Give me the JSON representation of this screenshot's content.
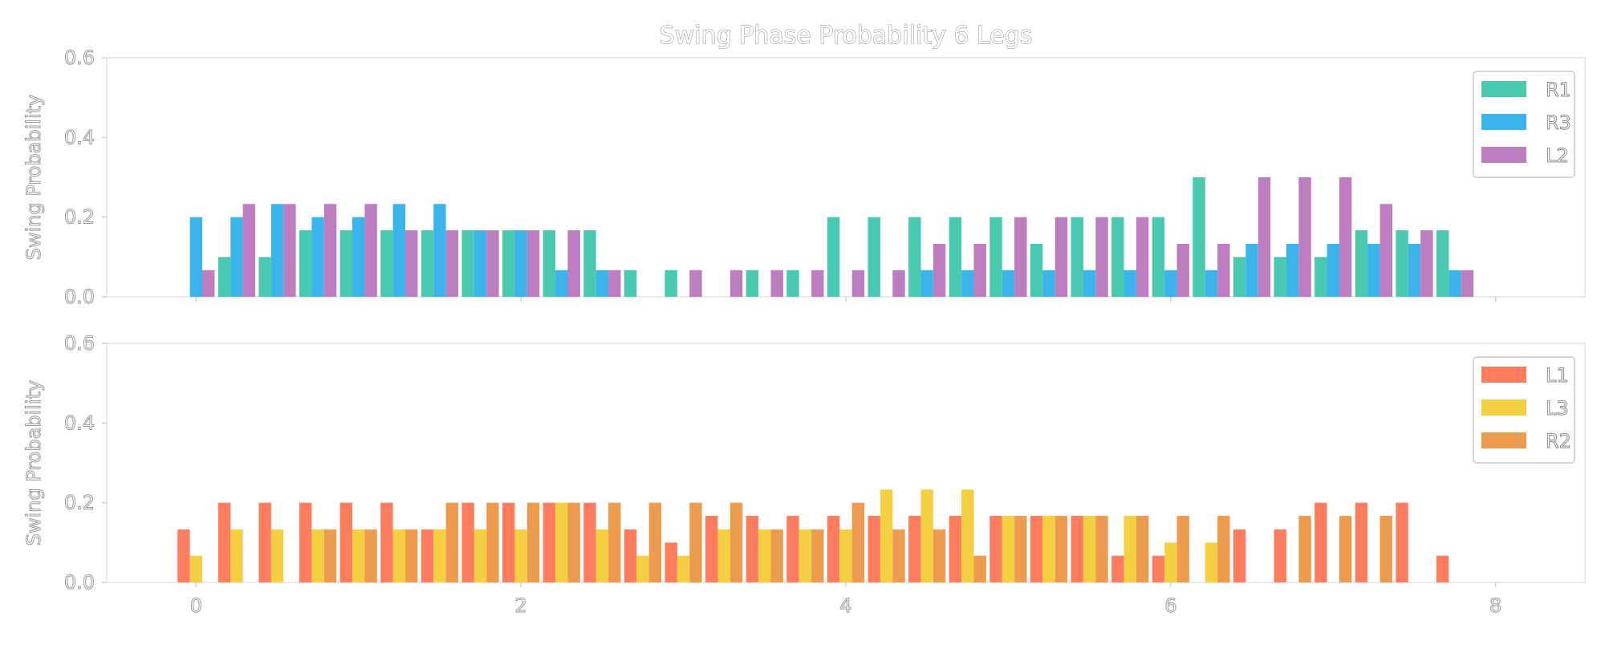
{
  "title": "Swing Phase Probability 6 Legs",
  "chart_data": [
    {
      "type": "bar",
      "ylabel": "Swing Probability",
      "xlabel": "",
      "ylim": [
        0,
        0.6
      ],
      "xlim": [
        -0.55,
        8.55
      ],
      "yticks": [
        "0.0",
        "0.2",
        "0.4",
        "0.6"
      ],
      "xticks": [
        "0",
        "2",
        "4",
        "6",
        "8"
      ],
      "grid": false,
      "legend_position": "top-right",
      "x": [
        0,
        0.25,
        0.5,
        0.75,
        1.0,
        1.25,
        1.5,
        1.75,
        2.0,
        2.25,
        2.5,
        2.75,
        3.0,
        3.25,
        3.5,
        3.75,
        4.0,
        4.25,
        4.5,
        4.75,
        5.0,
        5.25,
        5.5,
        5.75,
        6.0,
        6.25,
        6.5,
        6.75,
        7.0,
        7.25,
        7.5,
        7.75
      ],
      "series": [
        {
          "name": "R1",
          "color": "#48c9b0",
          "values": [
            0,
            0.1,
            0.1,
            0.167,
            0.167,
            0.167,
            0.167,
            0.167,
            0.167,
            0.167,
            0.167,
            0.067,
            0.067,
            0,
            0.067,
            0.067,
            0.2,
            0.2,
            0.2,
            0.2,
            0.2,
            0.133,
            0.2,
            0.2,
            0.2,
            0.3,
            0.1,
            0.1,
            0.1,
            0.167,
            0.167,
            0.167
          ]
        },
        {
          "name": "R3",
          "color": "#3bb4eb",
          "values": [
            0.2,
            0.2,
            0.233,
            0.2,
            0.2,
            0.233,
            0.233,
            0.167,
            0.167,
            0.067,
            0.067,
            0,
            0,
            0,
            0,
            0,
            0,
            0,
            0.067,
            0.067,
            0.067,
            0.067,
            0.067,
            0.067,
            0.067,
            0.067,
            0.133,
            0.133,
            0.133,
            0.133,
            0.133,
            0.067
          ]
        },
        {
          "name": "L2",
          "color": "#bd7ec1",
          "values": [
            0.067,
            0.233,
            0.233,
            0.233,
            0.233,
            0.167,
            0.167,
            0.167,
            0.167,
            0.167,
            0.067,
            0,
            0.067,
            0.067,
            0.067,
            0.067,
            0.067,
            0.067,
            0.133,
            0.133,
            0.2,
            0.2,
            0.2,
            0.2,
            0.133,
            0.133,
            0.3,
            0.3,
            0.3,
            0.233,
            0.167,
            0.067
          ]
        }
      ]
    },
    {
      "type": "bar",
      "ylabel": "Swing Probability",
      "xlabel": "",
      "ylim": [
        0,
        0.6
      ],
      "xlim": [
        -0.55,
        8.55
      ],
      "yticks": [
        "0.0",
        "0.2",
        "0.4",
        "0.6"
      ],
      "xticks": [
        "0",
        "2",
        "4",
        "6",
        "8"
      ],
      "grid": false,
      "legend_position": "top-right",
      "x": [
        0,
        0.25,
        0.5,
        0.75,
        1.0,
        1.25,
        1.5,
        1.75,
        2.0,
        2.25,
        2.5,
        2.75,
        3.0,
        3.25,
        3.5,
        3.75,
        4.0,
        4.25,
        4.5,
        4.75,
        5.0,
        5.25,
        5.5,
        5.75,
        6.0,
        6.25,
        6.5,
        6.75,
        7.0,
        7.25,
        7.5,
        7.75
      ],
      "series": [
        {
          "name": "L1",
          "color": "#fd7d5e",
          "values": [
            0.133,
            0.2,
            0.2,
            0.2,
            0.2,
            0.2,
            0.133,
            0.2,
            0.2,
            0.2,
            0.2,
            0.133,
            0.1,
            0.167,
            0.167,
            0.167,
            0.167,
            0.167,
            0.167,
            0.167,
            0.167,
            0.167,
            0.167,
            0.067,
            0.067,
            0,
            0.133,
            0.133,
            0.2,
            0.2,
            0.2,
            0.067
          ]
        },
        {
          "name": "L3",
          "color": "#f4cf42",
          "values": [
            0.067,
            0.133,
            0.133,
            0.133,
            0.133,
            0.133,
            0.133,
            0.133,
            0.133,
            0.2,
            0.133,
            0.067,
            0.067,
            0.133,
            0.133,
            0.133,
            0.133,
            0.233,
            0.233,
            0.233,
            0.167,
            0.167,
            0.167,
            0.167,
            0.1,
            0.1,
            0,
            0,
            0,
            0,
            0,
            0
          ]
        },
        {
          "name": "R2",
          "color": "#ed9c4f",
          "values": [
            0,
            0,
            0,
            0.133,
            0.133,
            0.133,
            0.2,
            0.2,
            0.2,
            0.2,
            0.2,
            0.2,
            0.2,
            0.2,
            0.133,
            0.133,
            0.2,
            0.133,
            0.133,
            0.067,
            0.167,
            0.167,
            0.167,
            0.167,
            0.167,
            0.167,
            0,
            0.167,
            0.167,
            0.167,
            0,
            0
          ]
        }
      ]
    }
  ]
}
